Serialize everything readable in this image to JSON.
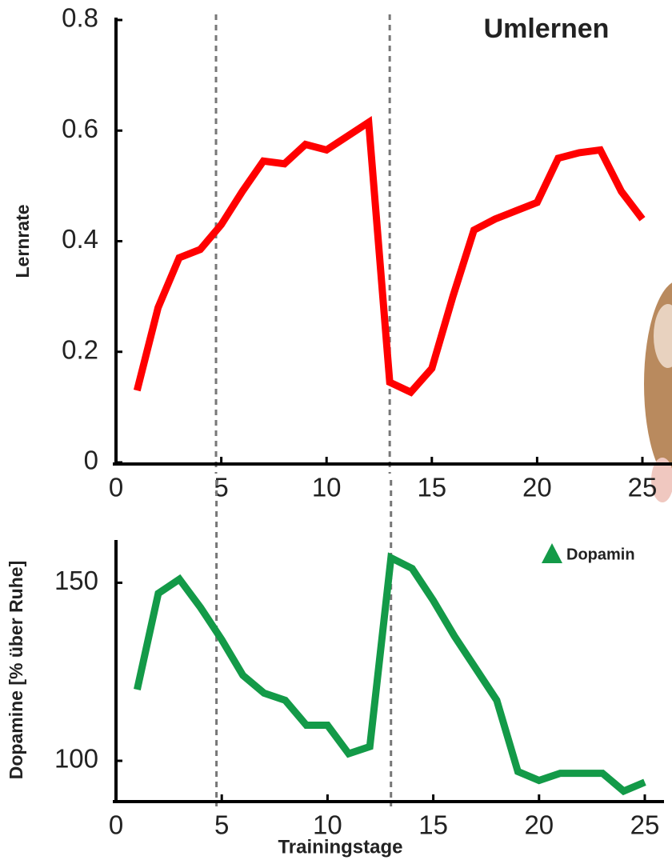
{
  "chart_data": [
    {
      "type": "line",
      "title": "Umlernen",
      "ylabel": "Lernrate",
      "x": [
        1,
        2,
        3,
        4,
        5,
        6,
        7,
        8,
        9,
        10,
        11,
        12,
        13,
        14,
        15,
        16,
        17,
        18,
        19,
        20,
        21,
        22,
        23,
        24,
        25
      ],
      "series": [
        {
          "color": "#ff0000",
          "values": [
            0.13,
            0.28,
            0.37,
            0.385,
            0.43,
            0.49,
            0.545,
            0.54,
            0.575,
            0.565,
            0.59,
            0.615,
            0.145,
            0.127,
            0.17,
            0.3,
            0.42,
            0.44,
            0.455,
            0.47,
            0.55,
            0.56,
            0.565,
            0.49,
            0.44
          ]
        }
      ],
      "xlim": [
        0,
        25
      ],
      "ylim": [
        0,
        0.8
      ],
      "xticks": [
        0,
        5,
        10,
        15,
        20,
        25
      ],
      "yticks": [
        0,
        0.2,
        0.4,
        0.6,
        0.8
      ],
      "vlines": [
        4.75,
        13
      ]
    },
    {
      "type": "line",
      "ylabel": "Dopamine [% über Ruhe]",
      "xlabel": "Trainingstage",
      "x": [
        1,
        2,
        3,
        4,
        5,
        6,
        7,
        8,
        9,
        10,
        11,
        12,
        13,
        14,
        15,
        16,
        17,
        18,
        19,
        20,
        21,
        22,
        23,
        24,
        25
      ],
      "series": [
        {
          "name": "Dopamin",
          "color": "#139a48",
          "values": [
            120,
            147,
            151,
            143,
            134,
            124,
            119,
            117,
            110,
            110,
            102,
            104,
            157,
            154,
            145,
            135,
            126,
            117,
            97,
            94.5,
            96.5,
            96.5,
            96.5,
            91.5,
            94
          ]
        }
      ],
      "xlim": [
        0,
        25
      ],
      "ylim": [
        89,
        162
      ],
      "xticks": [
        0,
        5,
        10,
        15,
        20,
        25
      ],
      "yticks": [
        100,
        150
      ],
      "vlines": [
        4.75,
        13
      ]
    }
  ]
}
